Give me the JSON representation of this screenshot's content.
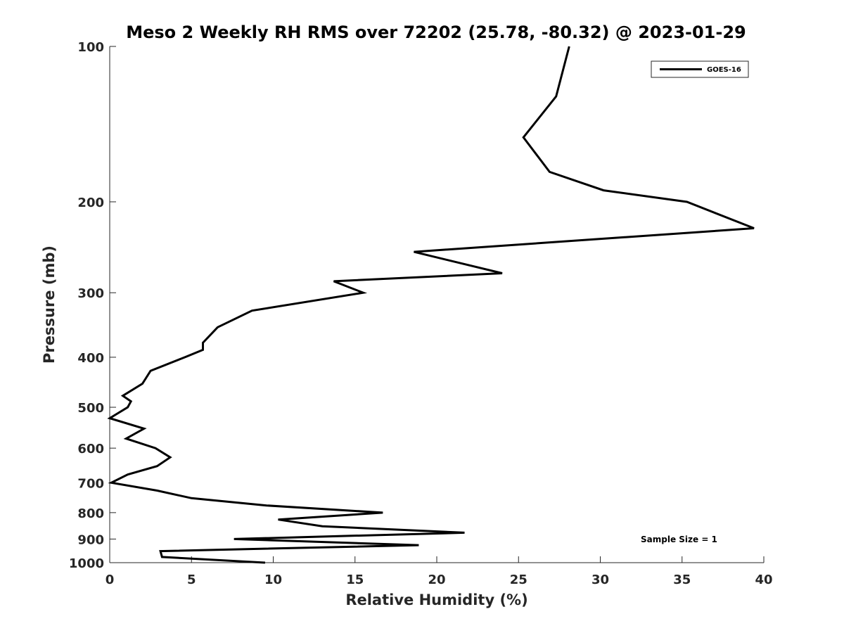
{
  "chart_data": {
    "type": "line",
    "title": "Meso 2 Weekly RH RMS over 72202 (25.78, -80.32) @ 2023-01-29",
    "xlabel": "Relative Humidity (%)",
    "ylabel": "Pressure (mb)",
    "xlim": [
      0,
      40
    ],
    "ylim": [
      100,
      1000
    ],
    "y_scale": "log",
    "y_reversed": true,
    "x_ticks": [
      "0",
      "5",
      "10",
      "15",
      "20",
      "25",
      "30",
      "35",
      "40"
    ],
    "y_ticks": [
      "100",
      "200",
      "300",
      "400",
      "500",
      "600",
      "700",
      "800",
      "900",
      "1000"
    ],
    "grid": false,
    "legend_position": "top-right",
    "annotation": "Sample Size = 1",
    "series": [
      {
        "name": "GOES-16",
        "color": "#000000",
        "x": [
          28.1,
          27.3,
          25.3,
          26.9,
          30.2,
          35.3,
          39.4,
          18.6,
          24.0,
          13.7,
          15.5,
          8.7,
          6.6,
          5.7,
          5.7,
          4.6,
          2.5,
          2.0,
          0.8,
          1.3,
          1.1,
          0.0,
          2.1,
          1.0,
          2.8,
          3.7,
          2.9,
          1.1,
          0.1,
          2.9,
          5.0,
          9.6,
          16.7,
          10.3,
          13.0,
          21.7,
          7.6,
          18.9,
          3.1,
          3.2,
          9.5
        ],
        "y": [
          100,
          125,
          150,
          175,
          190,
          200,
          225,
          250,
          275,
          285,
          300,
          325,
          350,
          375,
          387,
          400,
          425,
          450,
          475,
          487,
          500,
          525,
          550,
          575,
          600,
          625,
          650,
          675,
          700,
          725,
          750,
          775,
          800,
          825,
          850,
          875,
          900,
          925,
          950,
          975,
          1000
        ]
      }
    ]
  }
}
